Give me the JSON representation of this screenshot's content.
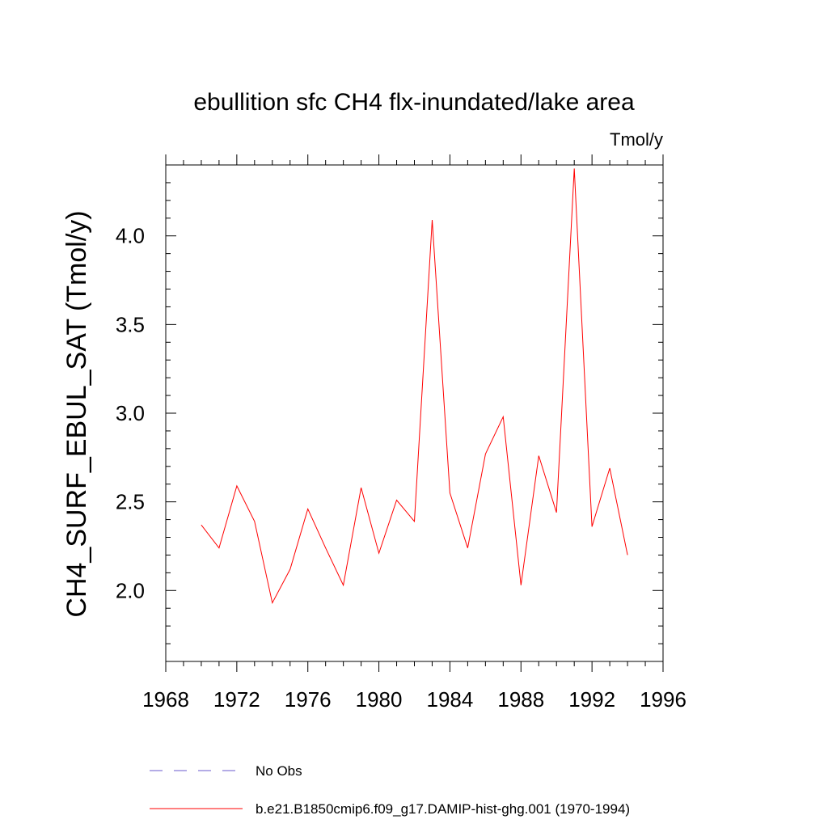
{
  "chart_data": {
    "type": "line",
    "title": "ebullition sfc CH4 flx-inundated/lake area",
    "units_label": "Tmol/y",
    "xlabel": "",
    "ylabel": "CH4_SURF_EBUL_SAT  (Tmol/y)",
    "xlim": [
      1968,
      1996
    ],
    "ylim": [
      1.6,
      4.4
    ],
    "x_ticks": [
      1968,
      1972,
      1976,
      1980,
      1984,
      1988,
      1992,
      1996
    ],
    "x_tick_labels": [
      "1968",
      "1972",
      "1976",
      "1980",
      "1984",
      "1988",
      "1992",
      "1996"
    ],
    "x_minor_step": 1,
    "y_ticks": [
      2.0,
      2.5,
      3.0,
      3.5,
      4.0
    ],
    "y_tick_labels": [
      "2.0",
      "2.5",
      "3.0",
      "3.5",
      "4.0"
    ],
    "y_minor_step": 0.1,
    "grid": false,
    "legend_position": "bottom",
    "series": [
      {
        "name": "b.e21.B1850cmip6.f09_g17.DAMIP-hist-ghg.001 (1970-1994)",
        "color": "#ff0000",
        "style": "solid",
        "x": [
          1970,
          1971,
          1972,
          1973,
          1974,
          1975,
          1976,
          1977,
          1978,
          1979,
          1980,
          1981,
          1982,
          1983,
          1984,
          1985,
          1986,
          1987,
          1988,
          1989,
          1990,
          1991,
          1992,
          1993,
          1994
        ],
        "y": [
          2.37,
          2.24,
          2.59,
          2.39,
          1.93,
          2.12,
          2.46,
          2.24,
          2.03,
          2.58,
          2.21,
          2.51,
          2.39,
          4.09,
          2.55,
          2.24,
          2.77,
          2.98,
          2.03,
          2.76,
          2.44,
          4.38,
          2.36,
          2.69,
          2.2
        ]
      }
    ],
    "legend": [
      {
        "label": "No Obs",
        "color": "#6a5acd",
        "style": "dashed"
      },
      {
        "label": "b.e21.B1850cmip6.f09_g17.DAMIP-hist-ghg.001 (1970-1994)",
        "color": "#ff0000",
        "style": "solid"
      }
    ]
  }
}
